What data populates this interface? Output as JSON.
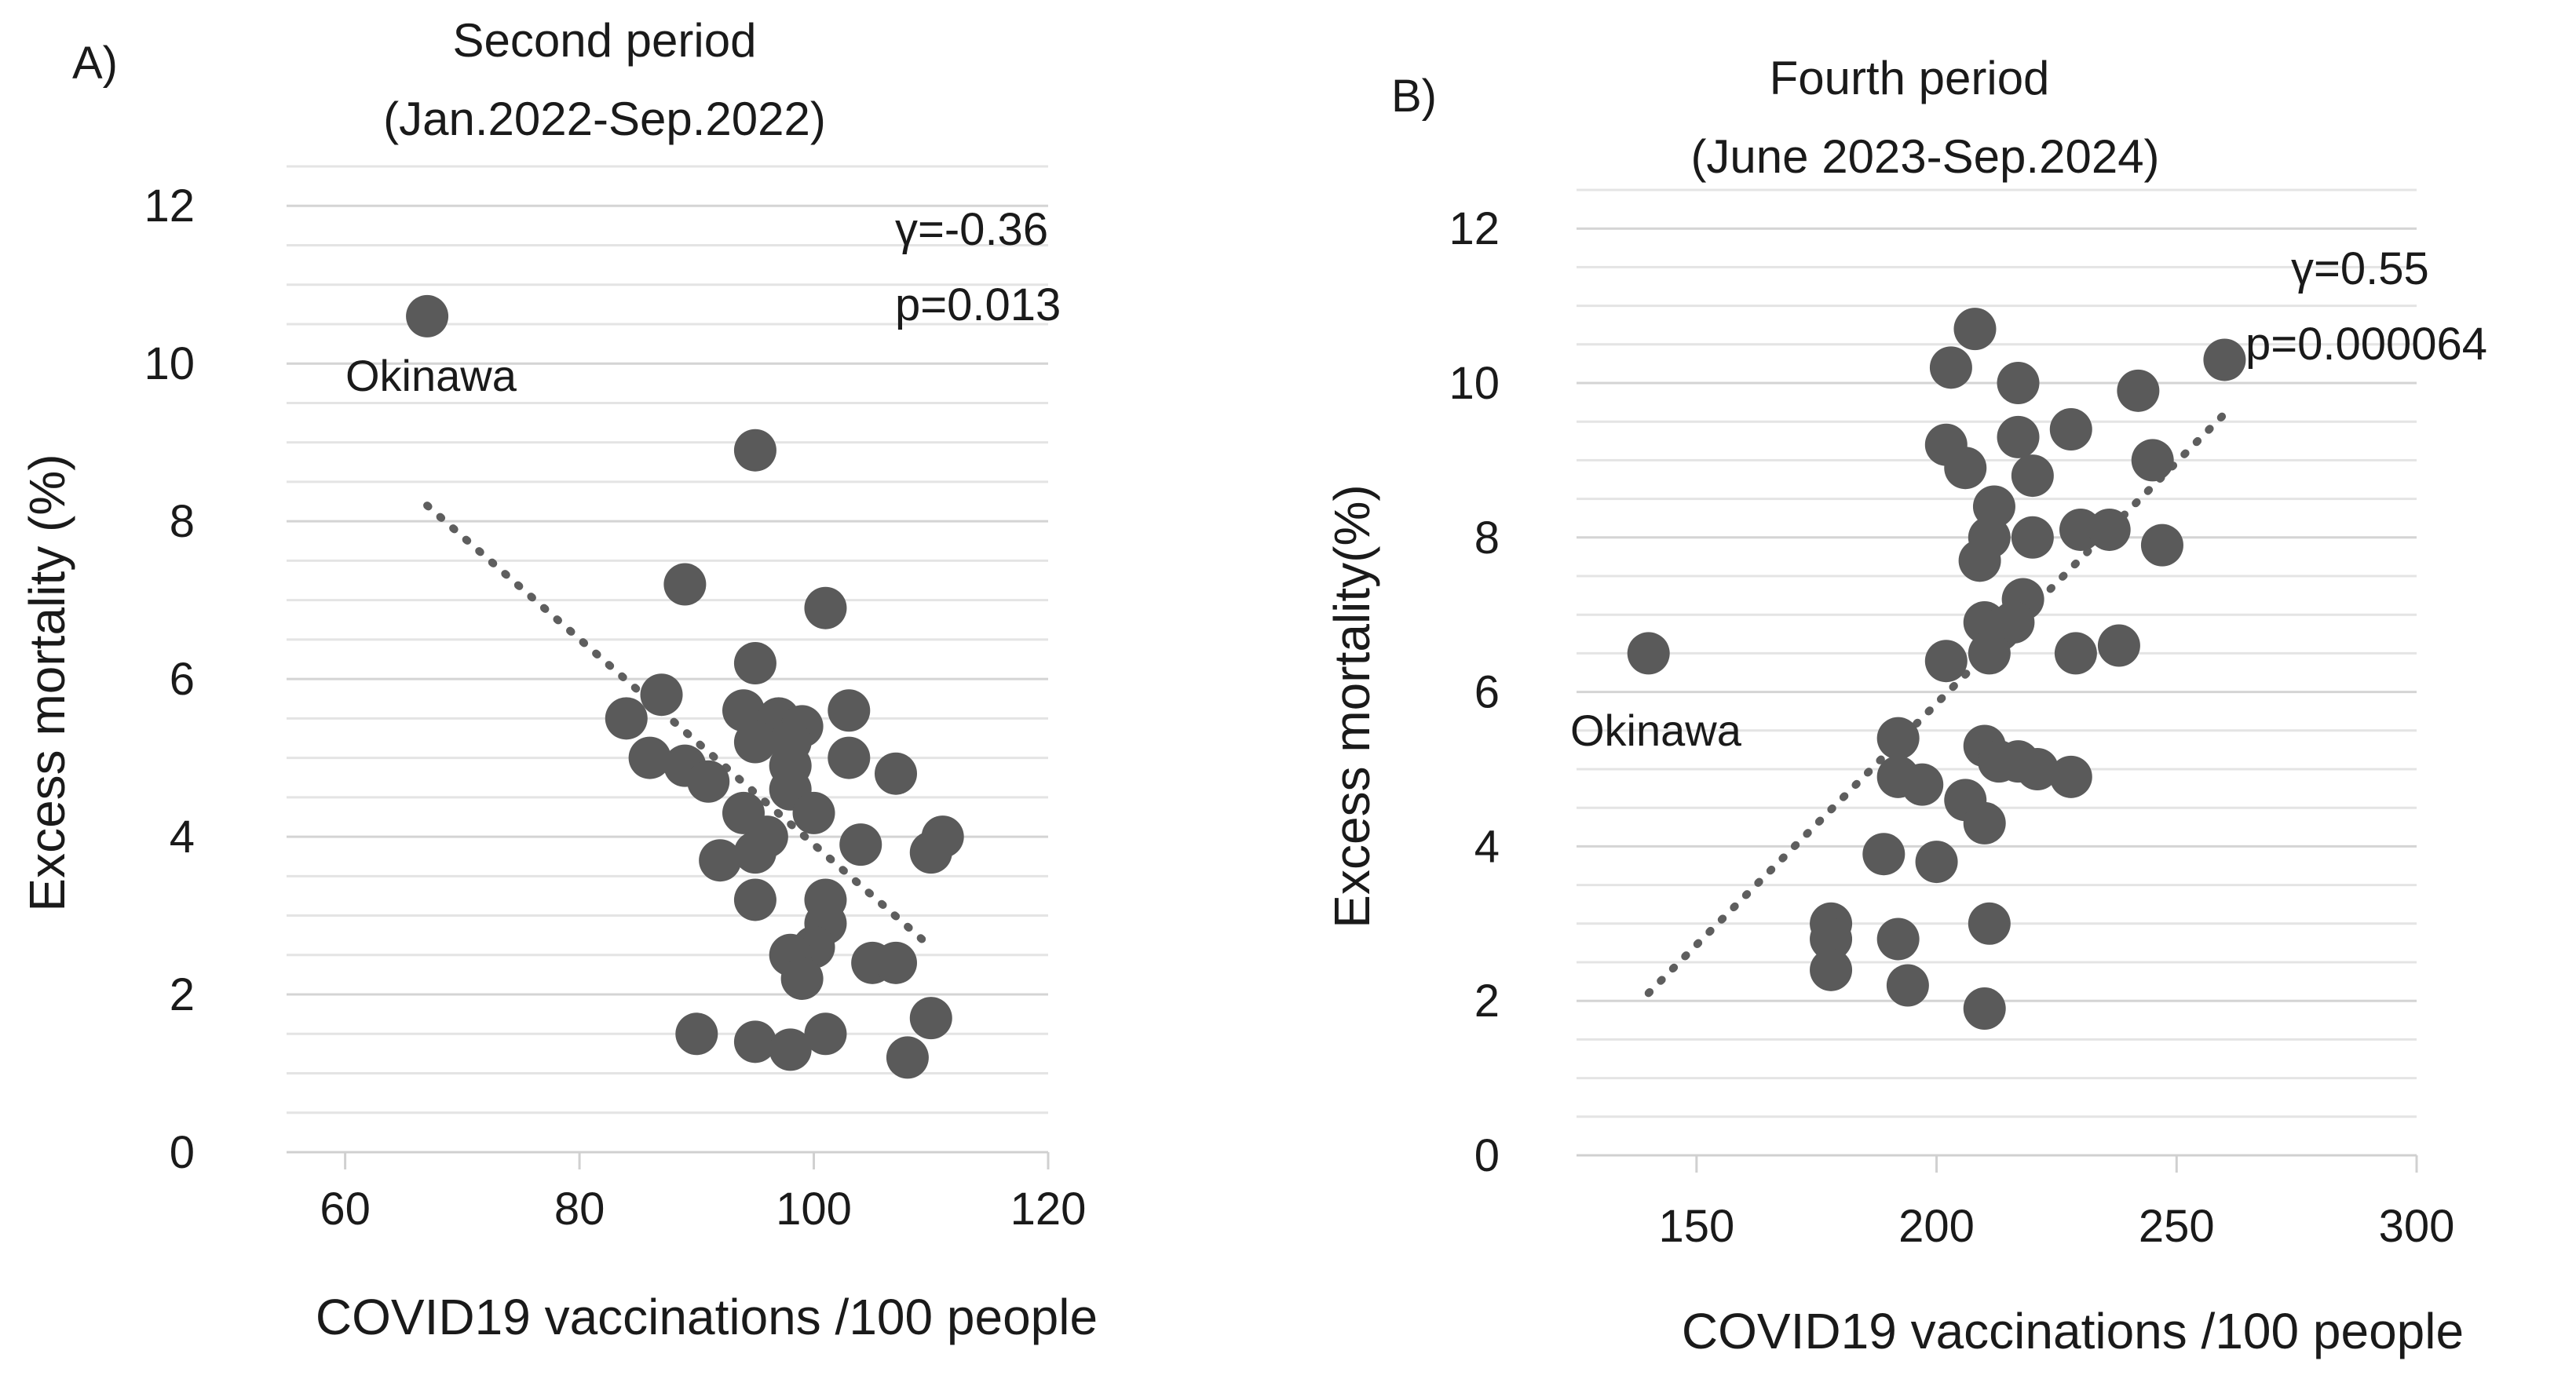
{
  "chart_data": [
    {
      "type": "scatter",
      "panel_label": "A)",
      "title": "Second period",
      "subtitle": "(Jan.2022-Sep.2022)",
      "xlabel": "COVID19 vaccinations /100 people",
      "ylabel": "Excess mortality (%)",
      "xlim": [
        55,
        120
      ],
      "ylim": [
        0,
        12.5
      ],
      "x_ticks": [
        60,
        80,
        100,
        120
      ],
      "y_ticks": [
        0,
        2,
        4,
        6,
        8,
        10,
        12
      ],
      "stats": {
        "gamma": "γ=-0.36",
        "p": "p=0.013"
      },
      "annotation": {
        "text": "Okinawa",
        "x": 67,
        "y": 10.6
      },
      "trendline": {
        "x": [
          67,
          110
        ],
        "y": [
          8.2,
          2.6
        ]
      },
      "points": [
        {
          "x": 67,
          "y": 10.6
        },
        {
          "x": 95,
          "y": 8.9
        },
        {
          "x": 89,
          "y": 7.2
        },
        {
          "x": 101,
          "y": 6.9
        },
        {
          "x": 95,
          "y": 6.2
        },
        {
          "x": 87,
          "y": 5.8
        },
        {
          "x": 84,
          "y": 5.5
        },
        {
          "x": 94,
          "y": 5.6
        },
        {
          "x": 97,
          "y": 5.5
        },
        {
          "x": 99,
          "y": 5.4
        },
        {
          "x": 103,
          "y": 5.6
        },
        {
          "x": 95,
          "y": 5.2
        },
        {
          "x": 98,
          "y": 5.2
        },
        {
          "x": 86,
          "y": 5.0
        },
        {
          "x": 89,
          "y": 4.9
        },
        {
          "x": 91,
          "y": 4.7
        },
        {
          "x": 98,
          "y": 4.9
        },
        {
          "x": 103,
          "y": 5.0
        },
        {
          "x": 107,
          "y": 4.8
        },
        {
          "x": 98,
          "y": 4.6
        },
        {
          "x": 94,
          "y": 4.3
        },
        {
          "x": 100,
          "y": 4.3
        },
        {
          "x": 96,
          "y": 4.0
        },
        {
          "x": 92,
          "y": 3.7
        },
        {
          "x": 95,
          "y": 3.8
        },
        {
          "x": 104,
          "y": 3.9
        },
        {
          "x": 110,
          "y": 3.8
        },
        {
          "x": 111,
          "y": 4.0
        },
        {
          "x": 95,
          "y": 3.2
        },
        {
          "x": 101,
          "y": 3.2
        },
        {
          "x": 101,
          "y": 2.9
        },
        {
          "x": 100,
          "y": 2.6
        },
        {
          "x": 98,
          "y": 2.5
        },
        {
          "x": 105,
          "y": 2.4
        },
        {
          "x": 107,
          "y": 2.4
        },
        {
          "x": 99,
          "y": 2.2
        },
        {
          "x": 90,
          "y": 1.5
        },
        {
          "x": 95,
          "y": 1.4
        },
        {
          "x": 98,
          "y": 1.3
        },
        {
          "x": 101,
          "y": 1.5
        },
        {
          "x": 108,
          "y": 1.2
        },
        {
          "x": 110,
          "y": 1.7
        }
      ]
    },
    {
      "type": "scatter",
      "panel_label": "B)",
      "title": "Fourth period",
      "subtitle": "(June 2023-Sep.2024)",
      "xlabel": "COVID19 vaccinations /100 people",
      "ylabel": "Excess mortality(%)",
      "xlim": [
        125,
        300
      ],
      "ylim": [
        0,
        12.5
      ],
      "x_ticks": [
        150,
        200,
        250,
        300
      ],
      "y_ticks": [
        0,
        2,
        4,
        6,
        8,
        10,
        12
      ],
      "stats": {
        "gamma": "γ=0.55",
        "p": "p=0.000064"
      },
      "annotation": {
        "text": "Okinawa",
        "x": 140,
        "y": 6.5
      },
      "trendline": {
        "x": [
          140,
          260
        ],
        "y": [
          2.1,
          9.6
        ]
      },
      "points": [
        {
          "x": 140,
          "y": 6.5
        },
        {
          "x": 208,
          "y": 10.7
        },
        {
          "x": 203,
          "y": 10.2
        },
        {
          "x": 217,
          "y": 10.0
        },
        {
          "x": 260,
          "y": 10.3
        },
        {
          "x": 242,
          "y": 9.9
        },
        {
          "x": 202,
          "y": 9.2
        },
        {
          "x": 217,
          "y": 9.3
        },
        {
          "x": 228,
          "y": 9.4
        },
        {
          "x": 206,
          "y": 8.9
        },
        {
          "x": 220,
          "y": 8.8
        },
        {
          "x": 245,
          "y": 9.0
        },
        {
          "x": 212,
          "y": 8.4
        },
        {
          "x": 211,
          "y": 8.0
        },
        {
          "x": 220,
          "y": 8.0
        },
        {
          "x": 230,
          "y": 8.1
        },
        {
          "x": 236,
          "y": 8.1
        },
        {
          "x": 247,
          "y": 7.9
        },
        {
          "x": 209,
          "y": 7.7
        },
        {
          "x": 218,
          "y": 7.2
        },
        {
          "x": 210,
          "y": 6.9
        },
        {
          "x": 213,
          "y": 6.8
        },
        {
          "x": 216,
          "y": 6.9
        },
        {
          "x": 202,
          "y": 6.4
        },
        {
          "x": 211,
          "y": 6.5
        },
        {
          "x": 229,
          "y": 6.5
        },
        {
          "x": 238,
          "y": 6.6
        },
        {
          "x": 192,
          "y": 5.4
        },
        {
          "x": 210,
          "y": 5.3
        },
        {
          "x": 213,
          "y": 5.1
        },
        {
          "x": 217,
          "y": 5.1
        },
        {
          "x": 221,
          "y": 5.0
        },
        {
          "x": 228,
          "y": 4.9
        },
        {
          "x": 192,
          "y": 4.9
        },
        {
          "x": 197,
          "y": 4.8
        },
        {
          "x": 206,
          "y": 4.6
        },
        {
          "x": 210,
          "y": 4.3
        },
        {
          "x": 189,
          "y": 3.9
        },
        {
          "x": 200,
          "y": 3.8
        },
        {
          "x": 178,
          "y": 3.0
        },
        {
          "x": 178,
          "y": 2.8
        },
        {
          "x": 192,
          "y": 2.8
        },
        {
          "x": 211,
          "y": 3.0
        },
        {
          "x": 178,
          "y": 2.4
        },
        {
          "x": 194,
          "y": 2.2
        },
        {
          "x": 210,
          "y": 1.9
        }
      ]
    }
  ]
}
